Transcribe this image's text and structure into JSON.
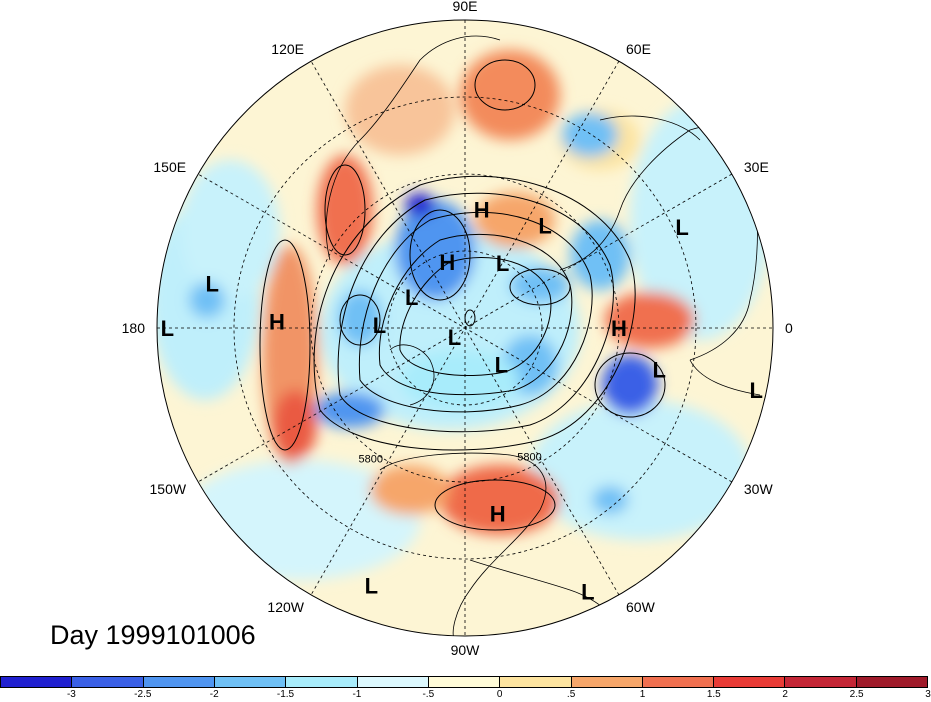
{
  "map": {
    "date_label": "Day 1999101006",
    "longitude_labels": [
      {
        "text": "90E",
        "lon": 90
      },
      {
        "text": "60E",
        "lon": 60
      },
      {
        "text": "30E",
        "lon": 30
      },
      {
        "text": "0",
        "lon": 0
      },
      {
        "text": "30W",
        "lon": -30
      },
      {
        "text": "60W",
        "lon": -60
      },
      {
        "text": "90W",
        "lon": -90
      },
      {
        "text": "120W",
        "lon": -120
      },
      {
        "text": "150W",
        "lon": -150
      },
      {
        "text": "180",
        "lon": 180
      },
      {
        "text": "150E",
        "lon": 150
      },
      {
        "text": "120E",
        "lon": 120
      }
    ],
    "centers": [
      {
        "type": "H",
        "lon": 82,
        "lat": 55
      },
      {
        "type": "L",
        "lon": 52,
        "lat": 52
      },
      {
        "type": "L",
        "lon": 25,
        "lat": 20
      },
      {
        "type": "H",
        "lon": 105,
        "lat": 70
      },
      {
        "type": "L",
        "lon": 150,
        "lat": 72
      },
      {
        "type": "L",
        "lon": 60,
        "lat": 68
      },
      {
        "type": "L",
        "lon": 170,
        "lat": 15
      },
      {
        "type": "H",
        "lon": 178,
        "lat": 35
      },
      {
        "type": "L",
        "lon": 178,
        "lat": 65
      },
      {
        "type": "L",
        "lon": -180,
        "lat": 3
      },
      {
        "type": "H",
        "lon": 0,
        "lat": 45
      },
      {
        "type": "L",
        "lon": -12,
        "lat": 32
      },
      {
        "type": "L",
        "lon": -12,
        "lat": 3
      },
      {
        "type": "L",
        "lon": -140,
        "lat": 86
      },
      {
        "type": "L",
        "lon": -45,
        "lat": 75
      },
      {
        "type": "H",
        "lon": -80,
        "lat": 35
      },
      {
        "type": "L",
        "lon": -110,
        "lat": 10
      },
      {
        "type": "L",
        "lon": -65,
        "lat": 5
      }
    ],
    "contour_labels": [
      {
        "text": "5800",
        "lon": -125,
        "lat": 42
      },
      {
        "text": "5800",
        "lon": -64,
        "lat": 47
      }
    ]
  },
  "colorbar": {
    "colors": [
      "#2020d0",
      "#3a60e6",
      "#5095f0",
      "#6fc0f5",
      "#a8ecfb",
      "#dcf8fe",
      "#fffbd8",
      "#fde4a0",
      "#f6a66a",
      "#f07050",
      "#e83b36",
      "#c42636",
      "#9f1a2a"
    ],
    "ticks": [
      "-3",
      "-2.5",
      "-2",
      "-1.5",
      "-1",
      "-.5",
      "0",
      ".5",
      "1",
      "1.5",
      "2",
      "2.5",
      "3"
    ]
  }
}
